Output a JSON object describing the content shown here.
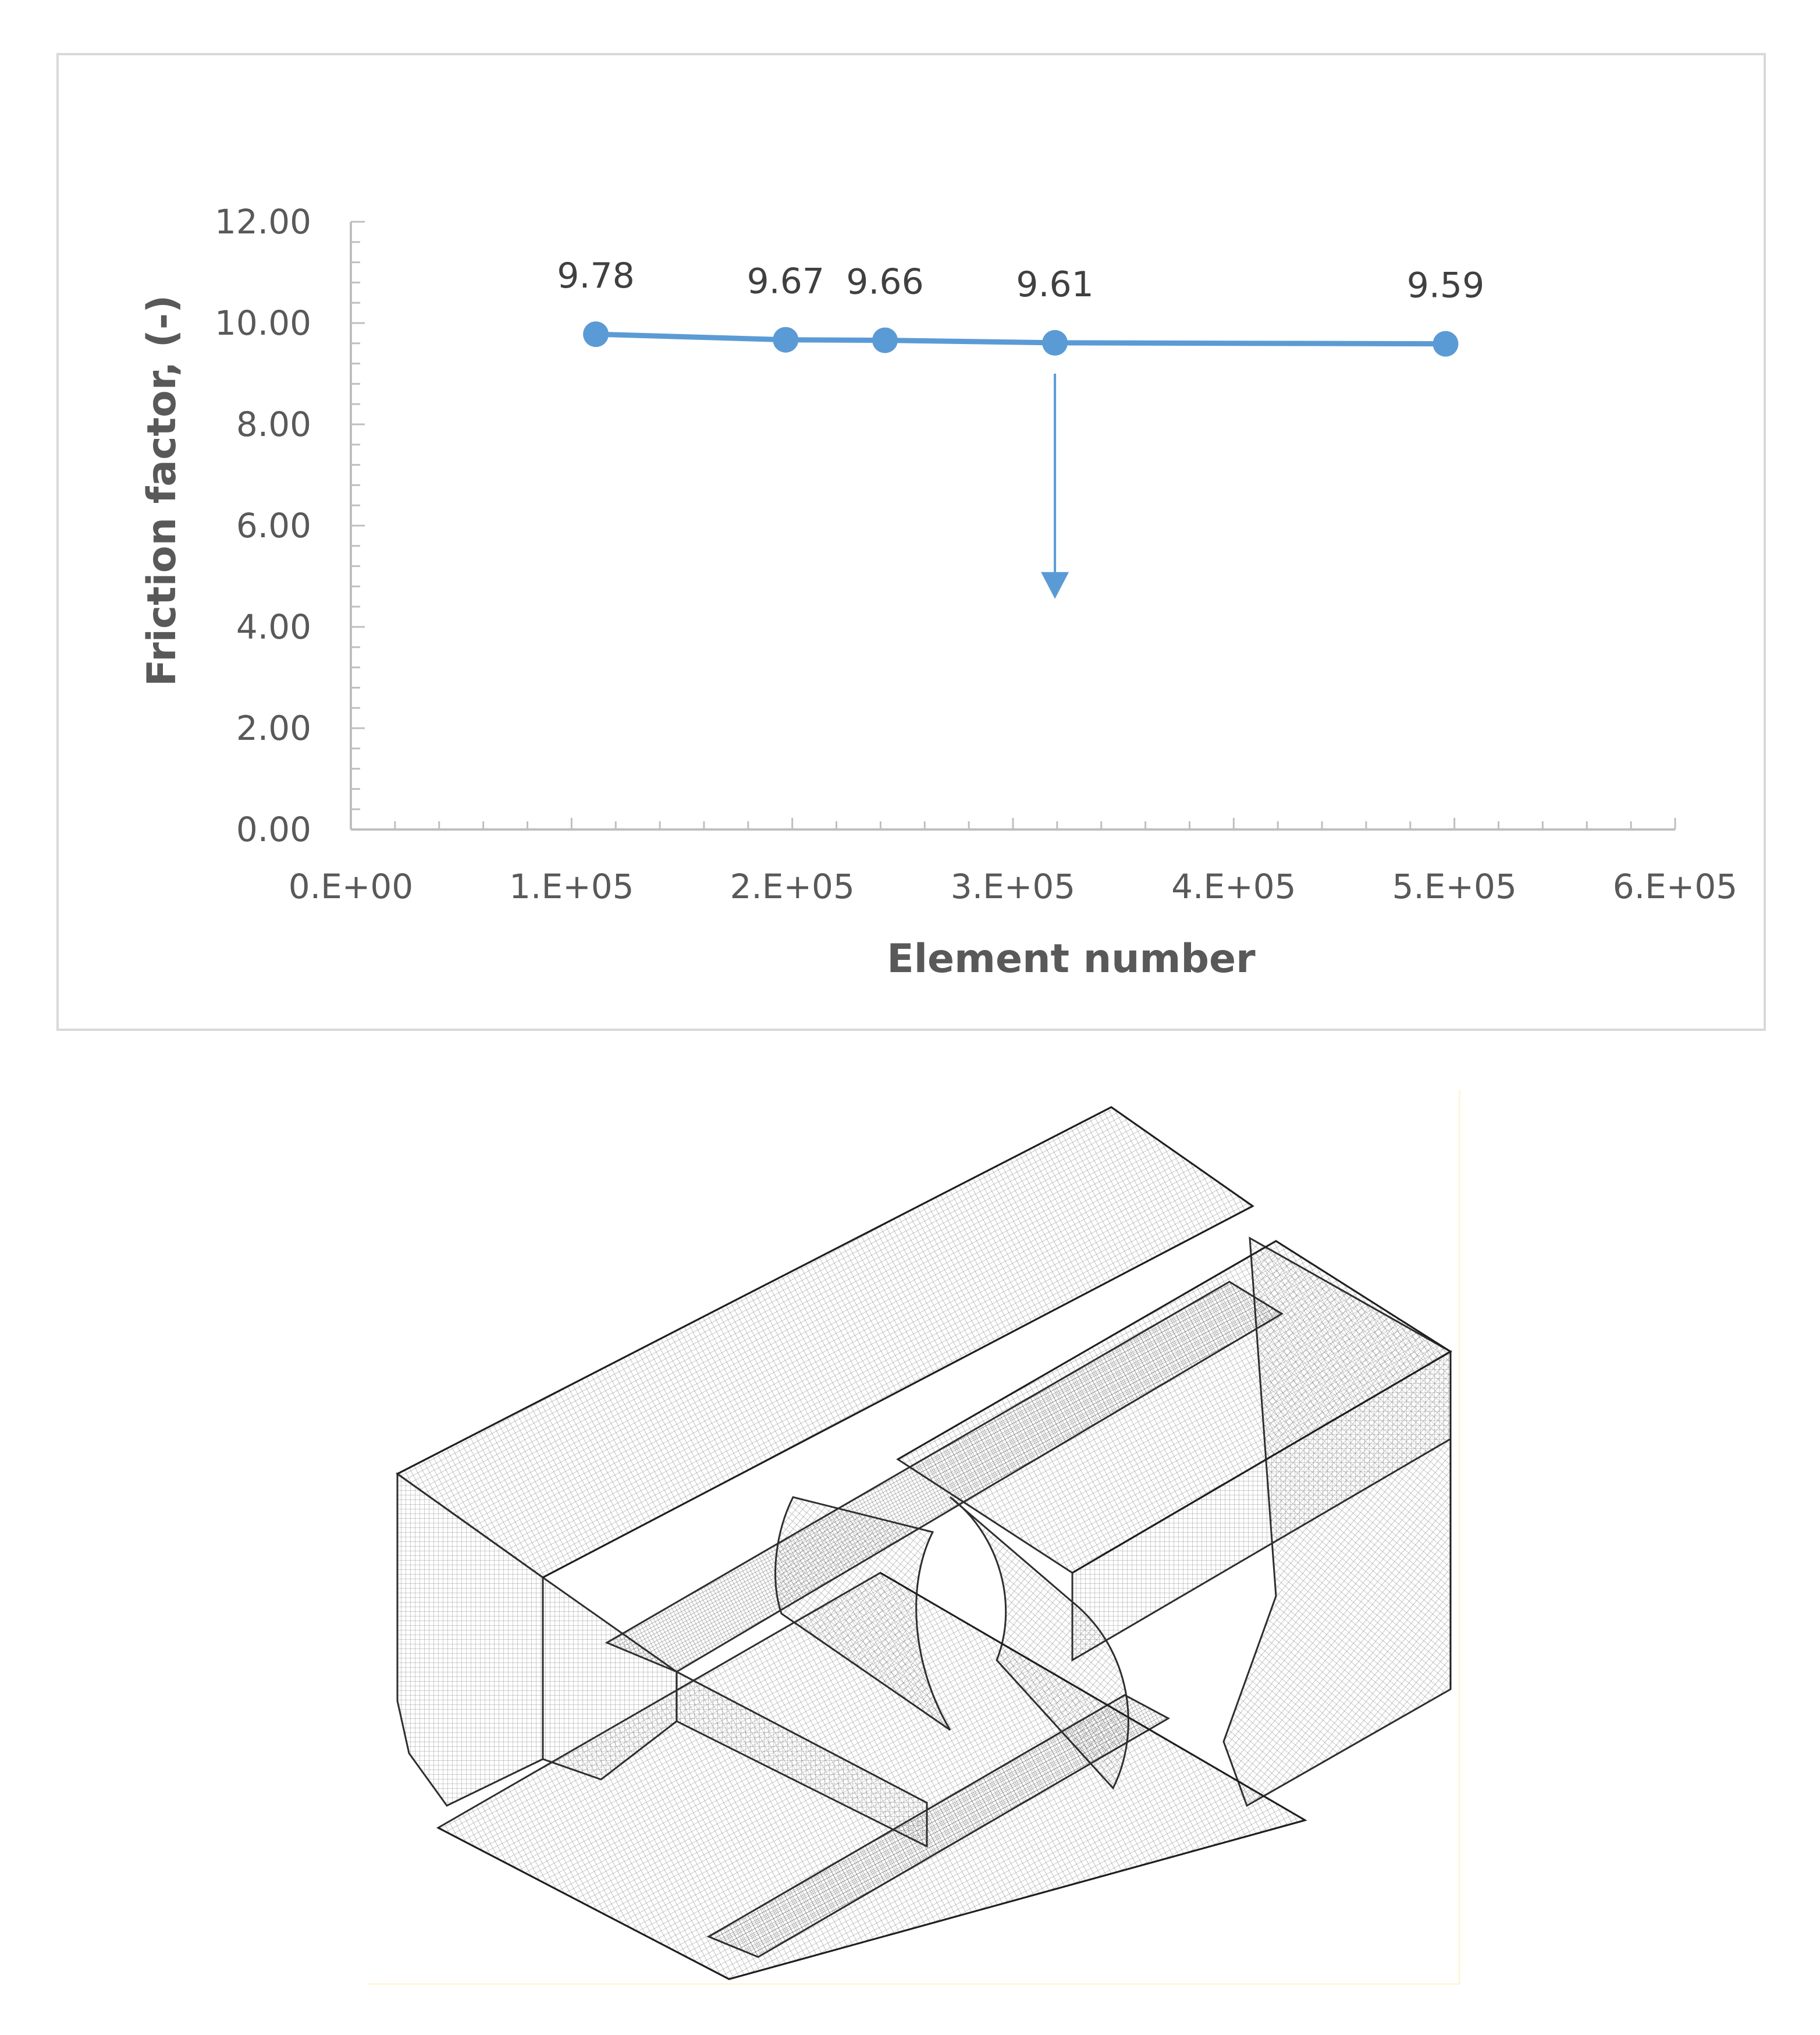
{
  "chart_data": {
    "type": "line",
    "title": "",
    "xlabel": "Element number",
    "ylabel": "Friction factor, (-)",
    "xlim": [
      0,
      600000
    ],
    "ylim": [
      0,
      12
    ],
    "x_ticks": [
      "0.E+00",
      "1.E+05",
      "2.E+05",
      "3.E+05",
      "4.E+05",
      "5.E+05",
      "6.E+05"
    ],
    "y_ticks": [
      "0.00",
      "2.00",
      "4.00",
      "6.00",
      "8.00",
      "10.00",
      "12.00"
    ],
    "grid": false,
    "legend": "none",
    "series": [
      {
        "x": [
          111000,
          197000,
          242000,
          319000,
          496000
        ],
        "values": [
          9.78,
          9.67,
          9.66,
          9.61,
          9.59
        ],
        "labels": [
          "9.78",
          "9.67",
          "9.66",
          "9.61",
          "9.59"
        ],
        "color": "#5b9bd5"
      }
    ],
    "annotations": [
      {
        "type": "arrow-down",
        "x": 319000,
        "y_from": 9.0,
        "y_to": 4.6,
        "color": "#5b9bd5"
      }
    ]
  },
  "figure": {
    "mesh_icon": "hexahedral-mesh-wireframe",
    "mesh_color": "#3a3a3a"
  }
}
